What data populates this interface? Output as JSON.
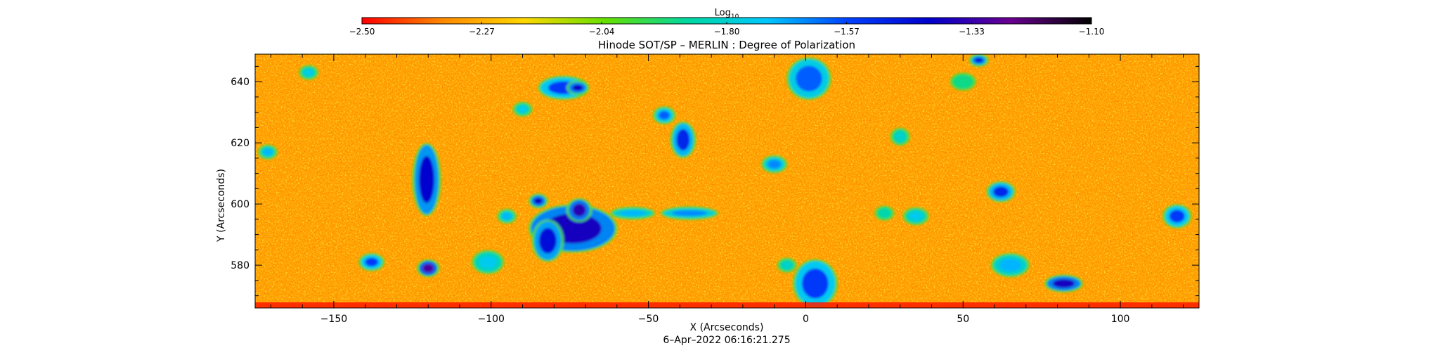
{
  "chart_data": {
    "type": "heatmap",
    "title": "Hinode SOT/SP – MERLIN : Degree of Polarization",
    "xlabel": "X (Arcseconds)",
    "ylabel": "Y (Arcseconds)",
    "xlim": [
      -175,
      125
    ],
    "ylim": [
      566,
      649
    ],
    "x_ticks": [
      -150,
      -100,
      -50,
      0,
      50,
      100
    ],
    "x_tick_labels": [
      "−150",
      "−100",
      "−50",
      "0",
      "50",
      "100"
    ],
    "y_ticks": [
      580,
      600,
      620,
      640
    ],
    "y_tick_labels": [
      "580",
      "600",
      "620",
      "640"
    ],
    "timestamp": "6–Apr–2022 06:16:21.275",
    "colorbar": {
      "label_main": "Log",
      "label_sub": "10",
      "min": -2.5,
      "max": -1.1,
      "ticks": [
        -2.5,
        -2.27,
        -2.04,
        -1.8,
        -1.57,
        -1.33,
        -1.1
      ],
      "tick_labels": [
        "−2.50",
        "−2.27",
        "−2.04",
        "−1.80",
        "−1.57",
        "−1.33",
        "−1.10"
      ],
      "colors": [
        "#ff0000",
        "#ff8a00",
        "#ffd700",
        "#66e000",
        "#00d8a0",
        "#00c8ff",
        "#0040ff",
        "#0000cc",
        "#6a0090",
        "#000000"
      ]
    },
    "background_value": -2.3,
    "patches": [
      {
        "x": -120.5,
        "y": 608,
        "rx": 3.5,
        "ry": 11,
        "value": -1.42
      },
      {
        "x": -74,
        "y": 592,
        "rx": 13,
        "ry": 7,
        "value": -1.38
      },
      {
        "x": -82,
        "y": 588,
        "rx": 4,
        "ry": 6,
        "value": -1.45
      },
      {
        "x": -72,
        "y": 598,
        "rx": 3,
        "ry": 3,
        "value": -1.35
      },
      {
        "x": -85,
        "y": 601,
        "rx": 2,
        "ry": 1.5,
        "value": -1.4
      },
      {
        "x": -77,
        "y": 638,
        "rx": 7,
        "ry": 3,
        "value": -1.55
      },
      {
        "x": -72.5,
        "y": 638,
        "rx": 2.5,
        "ry": 1.5,
        "value": -1.4
      },
      {
        "x": -39,
        "y": 621,
        "rx": 3,
        "ry": 5,
        "value": -1.5
      },
      {
        "x": -45,
        "y": 629,
        "rx": 2.5,
        "ry": 2,
        "value": -1.6
      },
      {
        "x": -120,
        "y": 579,
        "rx": 2.5,
        "ry": 2,
        "value": -1.3
      },
      {
        "x": -138,
        "y": 581,
        "rx": 3,
        "ry": 2,
        "value": -1.55
      },
      {
        "x": -101,
        "y": 580,
        "rx": 2,
        "ry": 1.5,
        "value": -1.55
      },
      {
        "x": -158,
        "y": 643,
        "rx": 2,
        "ry": 1.5,
        "value": -1.75
      },
      {
        "x": 1,
        "y": 641,
        "rx": 6,
        "ry": 6,
        "value": -1.6
      },
      {
        "x": 55,
        "y": 647,
        "rx": 2,
        "ry": 1.2,
        "value": -1.45
      },
      {
        "x": 3,
        "y": 574,
        "rx": 6,
        "ry": 7,
        "value": -1.55
      },
      {
        "x": 82,
        "y": 574,
        "rx": 5,
        "ry": 2,
        "value": -1.38
      },
      {
        "x": 62,
        "y": 604,
        "rx": 3.5,
        "ry": 2.5,
        "value": -1.5
      },
      {
        "x": 118,
        "y": 596,
        "rx": 3.5,
        "ry": 3,
        "value": -1.55
      },
      {
        "x": 65,
        "y": 580,
        "rx": 5,
        "ry": 3,
        "value": -1.7
      },
      {
        "x": -37,
        "y": 597,
        "rx": 8,
        "ry": 1.3,
        "value": -1.65
      },
      {
        "x": -55,
        "y": 597,
        "rx": 6,
        "ry": 1.2,
        "value": -1.7
      },
      {
        "x": -10,
        "y": 613,
        "rx": 3,
        "ry": 2,
        "value": -1.65
      },
      {
        "x": -101,
        "y": 581,
        "rx": 4,
        "ry": 3,
        "value": -1.75
      },
      {
        "x": 35,
        "y": 596,
        "rx": 3,
        "ry": 2,
        "value": -1.75
      },
      {
        "x": 30,
        "y": 622,
        "rx": 2,
        "ry": 2,
        "value": -1.8
      },
      {
        "x": -90,
        "y": 631,
        "rx": 2,
        "ry": 1.5,
        "value": -1.75
      },
      {
        "x": -95,
        "y": 596,
        "rx": 2,
        "ry": 1.5,
        "value": -1.7
      },
      {
        "x": -171,
        "y": 617,
        "rx": 2,
        "ry": 1.5,
        "value": -1.7
      },
      {
        "x": 25,
        "y": 597,
        "rx": 2,
        "ry": 1.5,
        "value": -1.85
      },
      {
        "x": 50,
        "y": 640,
        "rx": 3,
        "ry": 2,
        "value": -1.9
      },
      {
        "x": -6,
        "y": 580,
        "rx": 2,
        "ry": 1.5,
        "value": -1.8
      }
    ]
  }
}
